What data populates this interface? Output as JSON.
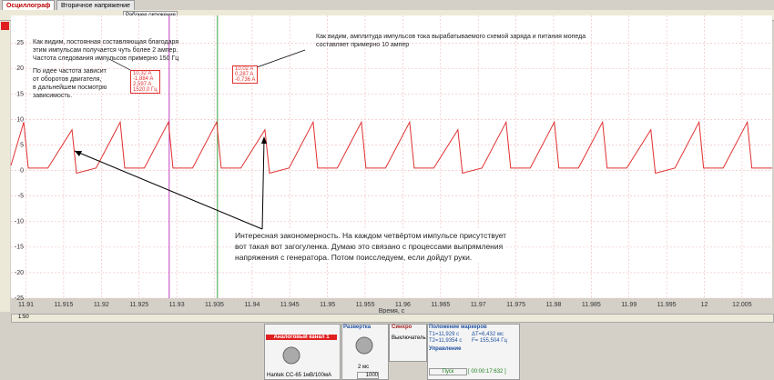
{
  "tabs": {
    "active": "Осциллограф",
    "second": "Вторичное напряжение"
  },
  "toolbar": {
    "environment": "Рабочее окружение"
  },
  "plot": {
    "type": "line",
    "color": "#e03030",
    "xlim": [
      11.908,
      12.009
    ],
    "ylim": [
      -25,
      30.4
    ],
    "xticks": [
      11.91,
      11.915,
      11.92,
      11.925,
      11.93,
      11.935,
      11.94,
      11.945,
      11.95,
      11.955,
      11.96,
      11.965,
      11.97,
      11.975,
      11.98,
      11.985,
      11.99,
      11.995,
      12,
      12.005
    ],
    "yticks": [
      25,
      20,
      15,
      10,
      5,
      0,
      -5,
      -10,
      -15,
      -20,
      -25
    ],
    "x_label": "Время, с",
    "x": [
      11.908,
      11.9097,
      11.9103,
      11.9129,
      11.9161,
      11.9167,
      11.9193,
      11.9225,
      11.9231,
      11.9257,
      11.9289,
      11.9295,
      11.9321,
      11.9353,
      11.9359,
      11.9385,
      11.9417,
      11.9423,
      11.9449,
      11.9481,
      11.9487,
      11.9513,
      11.9545,
      11.9551,
      11.9577,
      11.9609,
      11.9615,
      11.9641,
      11.9673,
      11.9679,
      11.9705,
      11.9737,
      11.9743,
      11.9769,
      11.9801,
      11.9807,
      11.9833,
      11.9865,
      11.9871,
      11.9897,
      11.9929,
      11.9935,
      11.9961,
      11.9993,
      11.9999,
      12.0025,
      12.0057,
      12.0063,
      12.009
    ],
    "values": [
      1,
      9.5,
      0.5,
      0.5,
      8,
      -0.5,
      0.5,
      9.5,
      0.5,
      0.5,
      9.5,
      0.5,
      0.5,
      9.5,
      0.5,
      0.5,
      8,
      -0.5,
      0.5,
      9.5,
      0.5,
      0.5,
      9.5,
      0.5,
      0.5,
      9.5,
      0.5,
      0.5,
      8,
      -0.5,
      0.5,
      9.5,
      0.5,
      0.5,
      9.5,
      0.5,
      0.5,
      9.5,
      0.5,
      0.5,
      8,
      -0.5,
      0.5,
      9.5,
      0.5,
      0.5,
      9.5,
      0.5,
      0.5
    ],
    "markers": [
      {
        "x": 11.929,
        "color": "#c040c0"
      },
      {
        "x": 11.9354,
        "color": "#40a040"
      }
    ]
  },
  "readouts": {
    "box1": [
      "10,32 A",
      "-1,884 A",
      "2,597 A",
      "1520,0 Гц"
    ],
    "box2": [
      "10,02 A",
      "0,287 A",
      "-0,736 A"
    ]
  },
  "notes": {
    "note1": [
      "Как видим, постоянная составляющая благодаря",
      "этим импульсам получается чуть более 2 ампер.",
      "Частота следования импульсов примерно 150 Гц"
    ],
    "note2": [
      "По идее частота зависит",
      "от оборотов двигателя,",
      "в дальнейшем посмотрю",
      "зависимость."
    ],
    "note3": [
      "Как видим, амплитуда импульсов тока вырабатываемого схемой заряда и питания мопеда",
      "составляет примерно 10 ампер"
    ],
    "note4": [
      "Интересная закономерность. На каждом четвёртом импульсе присутствует",
      "вот такая вот загогуленка. Думаю это связано с процессами выпрямления",
      "напряжения с генератора. Потом поисследуем, если дойдут руки."
    ]
  },
  "scroll": {
    "zoom": "1:50"
  },
  "panel": {
    "channel": "Аналоговый канал 1",
    "probe": "Hantek CC-65 1мВ/100мА",
    "sweep": "Развертка",
    "sweep_value": "2 мс",
    "sweep_count": "1000",
    "sync": "Синхро",
    "sync_mode": "Выключатель",
    "markers_title": "Положение маркеров",
    "t1": "T1=11,929 с",
    "t2": "T2=11,9354 с",
    "dt": "ΔT=6,432 мс",
    "f": "F= 155,504 Гц",
    "control": "Управление",
    "start": "Пуск",
    "timer": "[ 00:00:17:632 ]"
  }
}
